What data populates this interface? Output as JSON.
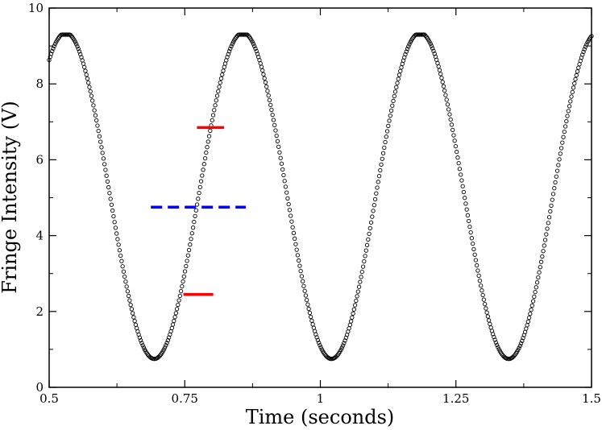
{
  "chart_data": {
    "type": "scatter",
    "title": "",
    "xlabel": "Time (seconds)",
    "ylabel": "Fringe Intensity (V)",
    "xlim": [
      0.5,
      1.5
    ],
    "ylim": [
      0,
      10
    ],
    "grid": false,
    "x_ticks": [
      0.5,
      0.75,
      1,
      1.25,
      1.5
    ],
    "x_tick_labels": [
      "0.5",
      "0.75",
      "1",
      "1.25",
      "1.5"
    ],
    "y_ticks": [
      0,
      2,
      4,
      6,
      8,
      10
    ],
    "y_tick_labels": [
      "0",
      "2",
      "4",
      "6",
      "8",
      "10"
    ],
    "series": [
      {
        "marker": "open-circle",
        "color": "#000000",
        "model": {
          "form": "sinusoid",
          "mean": 5.05,
          "amplitude": 4.3,
          "period": 0.3267,
          "peak_time": 0.5305,
          "x_start": 0.5,
          "x_end": 1.5,
          "count": 540,
          "clip_max": 9.3,
          "clip_min": 0.75
        }
      }
    ],
    "reference_lines": [
      {
        "style": "solid",
        "color": "#ff0000",
        "y": 6.85,
        "x": [
          0.7725,
          0.8225
        ]
      },
      {
        "style": "dashed",
        "color": "#0000ff",
        "y": 4.75,
        "x": [
          0.6875,
          0.8625
        ]
      },
      {
        "style": "solid",
        "color": "#ff0000",
        "y": 2.45,
        "x": [
          0.7475,
          0.8025
        ]
      }
    ]
  }
}
